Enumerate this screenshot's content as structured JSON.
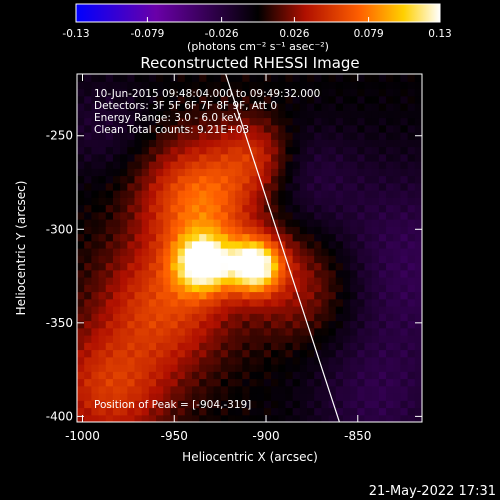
{
  "chart_data": {
    "type": "heatmap",
    "title": "Reconstructed RHESSI Image",
    "xlabel": "Heliocentric X (arcsec)",
    "ylabel": "Heliocentric Y (arcsec)",
    "xlim": [
      -1003,
      -815
    ],
    "ylim": [
      -403,
      -217
    ],
    "x_ticks": [
      -1000,
      -950,
      -900,
      -850
    ],
    "x_tick_labels": [
      "-1000",
      "-950",
      "-900",
      "-850"
    ],
    "y_ticks": [
      -400,
      -350,
      -300,
      -250
    ],
    "y_tick_labels": [
      "-400",
      "-350",
      "-300",
      "-250"
    ],
    "colorbar": {
      "range": [
        -0.13,
        0.13
      ],
      "ticks": [
        -0.13,
        -0.079,
        -0.026,
        0.026,
        0.079,
        0.13
      ],
      "tick_labels": [
        "-0.13",
        "-0.079",
        "-0.026",
        "0.026",
        "0.079",
        "0.13"
      ],
      "unit_label": "(photons cm⁻² s⁻¹ asec⁻²)",
      "colormap": [
        "#0000ff",
        "#6a00a8",
        "#000000",
        "#b01000",
        "#ff6000",
        "#ffd000",
        "#ffffff"
      ]
    },
    "annotations": [
      "10-Jun-2015 09:48:04.000 to 09:49:32.000",
      "Detectors: 3F 5F 6F 7F 8F 9F, Att 0",
      "Energy Range: 3.0 - 6.0 keV",
      "Clean    Total counts: 9.21E+03"
    ],
    "peak_label": "Position of Peak = [-904,-319]",
    "peak": {
      "x": -904,
      "y": -319
    },
    "sources": [
      {
        "x": -906,
        "y": -319,
        "sigma": 10,
        "amp": 0.13
      },
      {
        "x": -934,
        "y": -318,
        "sigma": 11,
        "amp": 0.115
      },
      {
        "x": -935,
        "y": -284,
        "sigma": 22,
        "amp": 0.075
      },
      {
        "x": -955,
        "y": -340,
        "sigma": 24,
        "amp": 0.055
      },
      {
        "x": -985,
        "y": -385,
        "sigma": 22,
        "amp": 0.05
      },
      {
        "x": -905,
        "y": -260,
        "sigma": 14,
        "amp": 0.04
      },
      {
        "x": -880,
        "y": -330,
        "sigma": 22,
        "amp": 0.04
      },
      {
        "x": -880,
        "y": -270,
        "sigma": 20,
        "amp": -0.02
      },
      {
        "x": -825,
        "y": -320,
        "sigma": 40,
        "amp": -0.035
      },
      {
        "x": -840,
        "y": -395,
        "sigma": 25,
        "amp": -0.025
      },
      {
        "x": -990,
        "y": -245,
        "sigma": 20,
        "amp": -0.02
      }
    ],
    "limb_line": [
      {
        "x": -922,
        "y": -217
      },
      {
        "x": -860,
        "y": -403
      }
    ],
    "grid": false,
    "legend": "none"
  },
  "footer_timestamp": "21-May-2022 17:31"
}
